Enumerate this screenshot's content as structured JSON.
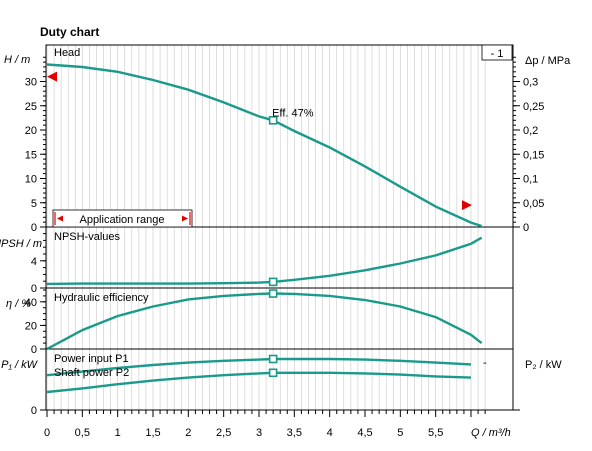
{
  "chart_data": {
    "title": "Duty chart",
    "curve_color": "#1a9a8a",
    "accent_color": "#e00000",
    "x_axis": {
      "label": "Q / m³/h",
      "range": [
        0,
        6.2
      ],
      "ticks": [
        0,
        0.5,
        1,
        1.5,
        2,
        2.5,
        3,
        3.5,
        4,
        4.5,
        5,
        5.5
      ],
      "tick_labels": [
        "0",
        "0,5",
        "1",
        "1,5",
        "2",
        "2,5",
        "3",
        "3,5",
        "4",
        "4,5",
        "5",
        "5,5"
      ]
    },
    "panels": [
      {
        "id": "head",
        "type": "line",
        "series_name": "Head",
        "ylabel_left": "H / m",
        "ylim_left": [
          0,
          35
        ],
        "yticks_left": [
          0,
          5,
          10,
          15,
          20,
          25,
          30
        ],
        "ytick_labels_left": [
          "0",
          "5",
          "10",
          "15",
          "20",
          "25",
          "30"
        ],
        "ylabel_right": "Δp / MPa",
        "ylim_right": [
          0,
          0.35
        ],
        "yticks_right": [
          0,
          0.05,
          0.1,
          0.15,
          0.2,
          0.25,
          0.3
        ],
        "ytick_labels_right": [
          "0",
          "0,05",
          "0,1",
          "0,15",
          "0,2",
          "0,25",
          "0,3"
        ],
        "x": [
          0,
          0.5,
          1,
          1.5,
          2,
          2.5,
          3,
          3.2,
          3.5,
          4,
          4.5,
          5,
          5.5,
          6,
          6.15
        ],
        "y": [
          33.5,
          33.0,
          32.0,
          30.3,
          28.3,
          25.7,
          22.8,
          22.0,
          19.8,
          16.4,
          12.5,
          8.3,
          4.2,
          0.9,
          0.2
        ],
        "duty_point": {
          "x": 3.2,
          "y": 22.0,
          "label": "Eff.  47%"
        },
        "range_markers": {
          "start_y": 31.0,
          "end_y": 4.5
        },
        "badge": "- 1",
        "application_range_label": "Application range"
      },
      {
        "id": "npsh",
        "type": "line",
        "series_name": "NPSH-values",
        "ylabel_left": "NPSH  / m",
        "ylim_left": [
          0,
          8
        ],
        "yticks_left": [
          0,
          4
        ],
        "ytick_labels_left": [
          "0",
          "4"
        ],
        "x": [
          0,
          0.5,
          1,
          1.5,
          2,
          2.5,
          3,
          3.2,
          3.5,
          4,
          4.5,
          5,
          5.5,
          6,
          6.15
        ],
        "y": [
          0.6,
          0.65,
          0.65,
          0.65,
          0.65,
          0.7,
          0.8,
          0.9,
          1.2,
          1.8,
          2.6,
          3.6,
          4.8,
          6.5,
          7.4
        ],
        "marker": {
          "x": 3.2,
          "y": 0.9
        }
      },
      {
        "id": "efficiency",
        "type": "line",
        "series_name": "Hydraulic efficiency",
        "ylabel_left": "η / %",
        "ylim_left": [
          0,
          50
        ],
        "yticks_left": [
          0,
          20,
          40
        ],
        "ytick_labels_left": [
          "0",
          "20",
          "40"
        ],
        "x": [
          0,
          0.25,
          0.5,
          1,
          1.5,
          2,
          2.5,
          3,
          3.2,
          3.5,
          4,
          4.5,
          5,
          5.5,
          6,
          6.15
        ],
        "y": [
          0,
          8,
          16,
          28,
          36,
          42,
          45,
          46.7,
          47,
          46.7,
          45,
          41.5,
          36,
          27,
          12,
          5
        ],
        "marker": {
          "x": 3.2,
          "y": 47
        }
      },
      {
        "id": "power",
        "type": "line",
        "ylabel_left": "P₁ / kW",
        "ylabel_right": "P₂ / kW",
        "ylim_left": [
          0,
          1
        ],
        "yticks_left": [
          0
        ],
        "ytick_labels_left": [
          "0"
        ],
        "series": [
          {
            "name": "Power input P1",
            "x": [
              0,
              0.5,
              1,
              1.5,
              2,
              2.5,
              3,
              3.2,
              3.5,
              4,
              4.5,
              5,
              5.5,
              6
            ],
            "y": [
              0.58,
              0.64,
              0.7,
              0.75,
              0.79,
              0.82,
              0.84,
              0.85,
              0.85,
              0.85,
              0.84,
              0.82,
              0.79,
              0.76
            ]
          },
          {
            "name": "Shaft power P2",
            "x": [
              0,
              0.5,
              1,
              1.5,
              2,
              2.5,
              3,
              3.2,
              3.5,
              4,
              4.5,
              5,
              5.5,
              6
            ],
            "y": [
              0.3,
              0.36,
              0.43,
              0.49,
              0.54,
              0.58,
              0.61,
              0.62,
              0.62,
              0.62,
              0.61,
              0.59,
              0.56,
              0.54
            ]
          }
        ],
        "marker_x": 3.2,
        "right_dash": "-"
      }
    ]
  }
}
